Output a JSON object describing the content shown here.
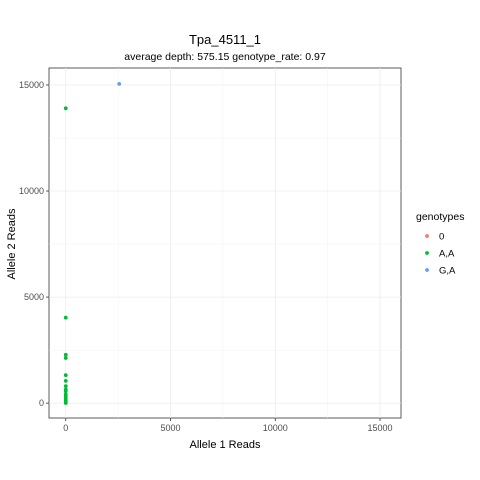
{
  "chart_data": {
    "type": "scatter",
    "title": "Tpa_4511_1",
    "subtitle": "average depth:  575.15  genotype_rate:  0.97",
    "xlabel": "Allele 1 Reads",
    "ylabel": "Allele 2 Reads",
    "xlim": [
      -800,
      16000
    ],
    "ylim": [
      -700,
      15800
    ],
    "x_ticks": [
      0,
      5000,
      10000,
      15000
    ],
    "y_ticks": [
      0,
      5000,
      10000,
      15000
    ],
    "grid": true,
    "legend": {
      "title": "genotypes",
      "placement": "right",
      "entries": [
        "0",
        "A,A",
        "G,A"
      ]
    },
    "series": [
      {
        "name": "0",
        "color": "#F8766D",
        "points": []
      },
      {
        "name": "A,A",
        "color": "#00BA38",
        "points": [
          [
            0,
            13900
          ],
          [
            0,
            4030
          ],
          [
            0,
            2280
          ],
          [
            0,
            2130
          ],
          [
            0,
            1320
          ],
          [
            0,
            1050
          ],
          [
            0,
            800
          ],
          [
            0,
            640
          ],
          [
            0,
            560
          ],
          [
            0,
            420
          ],
          [
            0,
            330
          ],
          [
            0,
            220
          ],
          [
            0,
            130
          ],
          [
            0,
            60
          ],
          [
            0,
            10
          ]
        ]
      },
      {
        "name": "G,A",
        "color": "#619CFF",
        "points": [
          [
            2550,
            15050
          ]
        ]
      }
    ]
  }
}
